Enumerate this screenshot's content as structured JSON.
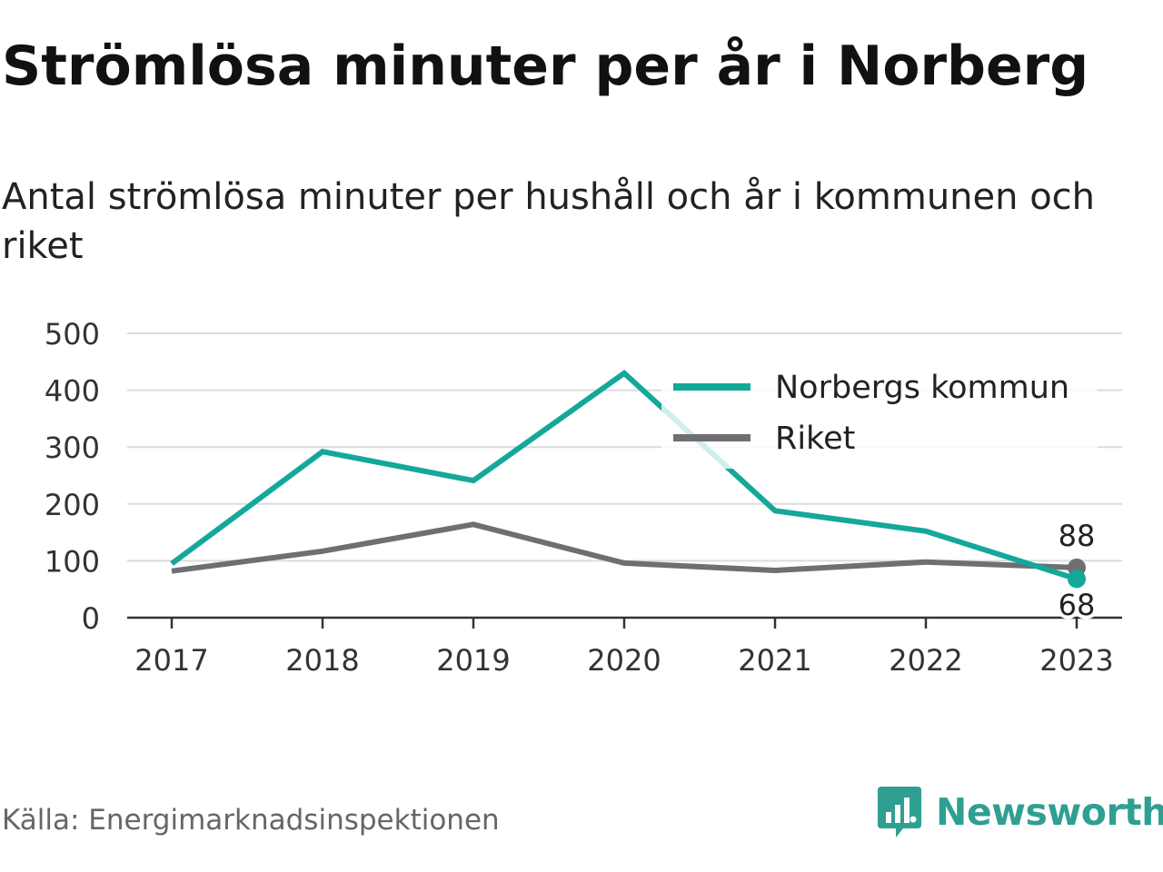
{
  "title": "Strömlösa minuter per år i Norberg",
  "subtitle": "Antal strömlösa minuter per hushåll och år i kommunen och riket",
  "source": "Källa: Energimarknadsinspektionen",
  "brand": {
    "name": "Newsworthy",
    "icon": "newsworthy-logo-icon"
  },
  "colors": {
    "norberg": "#14a89a",
    "riket": "#6f6e73",
    "brand": "#2f9f92"
  },
  "chart_data": {
    "type": "line",
    "x": [
      "2017",
      "2018",
      "2019",
      "2020",
      "2021",
      "2022",
      "2023"
    ],
    "series": [
      {
        "name": "Norbergs kommun",
        "values": [
          95,
          292,
          241,
          430,
          188,
          152,
          68
        ]
      },
      {
        "name": "Riket",
        "values": [
          82,
          117,
          164,
          96,
          83,
          98,
          88
        ]
      }
    ],
    "ylim": [
      0,
      500
    ],
    "yticks": [
      0,
      100,
      200,
      300,
      400,
      500
    ],
    "end_labels": [
      "68",
      "88"
    ],
    "grid": true,
    "legend": "top-right"
  }
}
